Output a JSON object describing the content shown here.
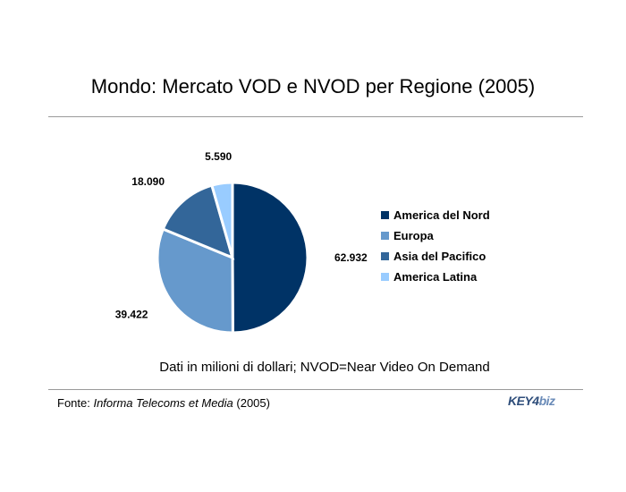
{
  "title": "Mondo: Mercato VOD e NVOD per Regione (2005)",
  "note": "Dati in milioni di dollari; NVOD=Near Video On Demand",
  "source": {
    "prefix": "Fonte: ",
    "publication": "Informa Telecoms et Media",
    "suffix": " (2005)"
  },
  "logo": {
    "part1": "KEY4",
    "part2": "biz"
  },
  "chart_data": {
    "type": "pie",
    "title": "Mondo: Mercato VOD e NVOD per Regione (2005)",
    "legend_position": "right",
    "series": [
      {
        "name": "America del Nord",
        "value": 62932,
        "label": "62.932",
        "color": "#003366"
      },
      {
        "name": "Europa",
        "value": 39422,
        "label": "39.422",
        "color": "#6699cc"
      },
      {
        "name": "Asia del Pacifico",
        "value": 18090,
        "label": "18.090",
        "color": "#336699"
      },
      {
        "name": "America Latina",
        "value": 5590,
        "label": "5.590",
        "color": "#99ccff"
      }
    ]
  }
}
